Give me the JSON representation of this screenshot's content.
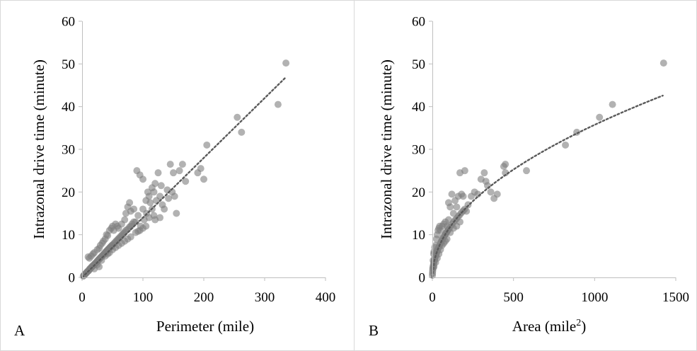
{
  "chart_data": [
    {
      "type": "scatter",
      "panel": "A",
      "xlabel": "Perimeter (mile)",
      "ylabel": "Intrazonal drive time (minute)",
      "xlim": [
        0,
        400
      ],
      "ylim": [
        0,
        60
      ],
      "xticks": [
        "0",
        "100",
        "200",
        "300",
        "400"
      ],
      "yticks": [
        "0",
        "10",
        "20",
        "30",
        "40",
        "50",
        "60"
      ],
      "trendline": {
        "style": "dotted",
        "form": "linear",
        "slope": 0.14,
        "x_start": 0,
        "x_end": 335
      },
      "points": [
        [
          2,
          0.3
        ],
        [
          3,
          0.5
        ],
        [
          4,
          0.6
        ],
        [
          5,
          0.8
        ],
        [
          6,
          0.9
        ],
        [
          7,
          1.1
        ],
        [
          8,
          1.2
        ],
        [
          9,
          1.4
        ],
        [
          10,
          1.5
        ],
        [
          11,
          1.6
        ],
        [
          12,
          1.9
        ],
        [
          13,
          2.0
        ],
        [
          14,
          2.2
        ],
        [
          15,
          2.3
        ],
        [
          16,
          2.5
        ],
        [
          17,
          2.6
        ],
        [
          18,
          2.8
        ],
        [
          19,
          2.9
        ],
        [
          20,
          3.0
        ],
        [
          21,
          3.2
        ],
        [
          22,
          3.3
        ],
        [
          23,
          3.5
        ],
        [
          24,
          3.6
        ],
        [
          25,
          3.8
        ],
        [
          26,
          4.0
        ],
        [
          27,
          4.1
        ],
        [
          28,
          4.3
        ],
        [
          29,
          4.4
        ],
        [
          30,
          4.6
        ],
        [
          31,
          4.7
        ],
        [
          32,
          4.9
        ],
        [
          33,
          5.0
        ],
        [
          34,
          5.2
        ],
        [
          35,
          5.3
        ],
        [
          36,
          5.5
        ],
        [
          37,
          5.6
        ],
        [
          38,
          5.8
        ],
        [
          39,
          6.0
        ],
        [
          40,
          6.1
        ],
        [
          41,
          6.3
        ],
        [
          42,
          6.4
        ],
        [
          43,
          6.6
        ],
        [
          44,
          6.7
        ],
        [
          45,
          6.9
        ],
        [
          46,
          7.0
        ],
        [
          47,
          7.2
        ],
        [
          48,
          7.3
        ],
        [
          49,
          7.5
        ],
        [
          50,
          7.6
        ],
        [
          52,
          7.9
        ],
        [
          54,
          8.2
        ],
        [
          56,
          8.5
        ],
        [
          58,
          8.8
        ],
        [
          60,
          9.1
        ],
        [
          62,
          9.4
        ],
        [
          64,
          9.7
        ],
        [
          66,
          10.0
        ],
        [
          68,
          10.3
        ],
        [
          70,
          10.6
        ],
        [
          72,
          11.0
        ],
        [
          75,
          11.3
        ],
        [
          78,
          11.8
        ],
        [
          80,
          12.0
        ],
        [
          82,
          12.5
        ],
        [
          85,
          13.0
        ],
        [
          10,
          4.8
        ],
        [
          12,
          4.5
        ],
        [
          15,
          5.0
        ],
        [
          18,
          5.5
        ],
        [
          20,
          5.8
        ],
        [
          25,
          6.5
        ],
        [
          28,
          6.8
        ],
        [
          30,
          7.5
        ],
        [
          33,
          8.0
        ],
        [
          35,
          8.5
        ],
        [
          38,
          9.0
        ],
        [
          40,
          10.0
        ],
        [
          42,
          9.8
        ],
        [
          45,
          11.0
        ],
        [
          48,
          11.5
        ],
        [
          50,
          12.0
        ],
        [
          52,
          11.0
        ],
        [
          55,
          12.5
        ],
        [
          58,
          12.0
        ],
        [
          60,
          11.5
        ],
        [
          65,
          12.5
        ],
        [
          70,
          13.5
        ],
        [
          72,
          15.0
        ],
        [
          75,
          16.5
        ],
        [
          78,
          17.5
        ],
        [
          80,
          15.5
        ],
        [
          85,
          16.0
        ],
        [
          20,
          2.0
        ],
        [
          25,
          3.0
        ],
        [
          28,
          2.5
        ],
        [
          32,
          4.0
        ],
        [
          38,
          5.0
        ],
        [
          42,
          5.5
        ],
        [
          45,
          5.8
        ],
        [
          50,
          6.5
        ],
        [
          55,
          7.0
        ],
        [
          60,
          7.5
        ],
        [
          65,
          8.0
        ],
        [
          70,
          8.5
        ],
        [
          75,
          9.0
        ],
        [
          80,
          9.5
        ],
        [
          88,
          10.5
        ],
        [
          92,
          10.8
        ],
        [
          95,
          11.0
        ],
        [
          100,
          11.5
        ],
        [
          105,
          12.0
        ],
        [
          90,
          25.0
        ],
        [
          95,
          24.0
        ],
        [
          100,
          23.0
        ],
        [
          105,
          18.0
        ],
        [
          108,
          20.0
        ],
        [
          110,
          19.0
        ],
        [
          112,
          17.5
        ],
        [
          115,
          21.0
        ],
        [
          118,
          20.0
        ],
        [
          120,
          22.0
        ],
        [
          122,
          18.0
        ],
        [
          125,
          24.5
        ],
        [
          128,
          19.0
        ],
        [
          128,
          14.0
        ],
        [
          130,
          21.5
        ],
        [
          132,
          17.0
        ],
        [
          135,
          16.0
        ],
        [
          140,
          20.5
        ],
        [
          142,
          18.5
        ],
        [
          145,
          26.5
        ],
        [
          148,
          20.0
        ],
        [
          150,
          24.5
        ],
        [
          152,
          19.0
        ],
        [
          155,
          15.0
        ],
        [
          160,
          25.0
        ],
        [
          165,
          26.5
        ],
        [
          170,
          22.5
        ],
        [
          190,
          24.5
        ],
        [
          195,
          25.5
        ],
        [
          200,
          23.0
        ],
        [
          205,
          31.0
        ],
        [
          255,
          37.5
        ],
        [
          262,
          34.0
        ],
        [
          322,
          40.5
        ],
        [
          335,
          50.2
        ],
        [
          88,
          13.0
        ],
        [
          92,
          14.5
        ],
        [
          96,
          12.0
        ],
        [
          100,
          16.0
        ],
        [
          102,
          13.5
        ],
        [
          106,
          15.0
        ],
        [
          110,
          14.0
        ],
        [
          115,
          16.0
        ],
        [
          118,
          14.5
        ],
        [
          120,
          13.5
        ]
      ]
    },
    {
      "type": "scatter",
      "panel": "B",
      "xlabel": "Area (mile²)",
      "ylabel": "Intrazonal drive time (minute)",
      "xlim": [
        0,
        1500
      ],
      "ylim": [
        0,
        60
      ],
      "xticks": [
        "0",
        "500",
        "1000",
        "1500"
      ],
      "yticks": [
        "0",
        "10",
        "20",
        "30",
        "40",
        "50",
        "60"
      ],
      "trendline": {
        "style": "dotted",
        "form": "power",
        "coef": 1.13,
        "exponent": 0.5,
        "x_start": 0,
        "x_end": 1420
      },
      "points": [
        [
          0.5,
          0.5
        ],
        [
          1,
          1.0
        ],
        [
          2,
          1.5
        ],
        [
          3,
          2.0
        ],
        [
          4,
          2.2
        ],
        [
          5,
          2.5
        ],
        [
          6,
          2.8
        ],
        [
          8,
          3.2
        ],
        [
          10,
          3.6
        ],
        [
          12,
          3.9
        ],
        [
          14,
          4.2
        ],
        [
          16,
          4.5
        ],
        [
          18,
          4.8
        ],
        [
          20,
          5.1
        ],
        [
          22,
          5.3
        ],
        [
          25,
          5.6
        ],
        [
          28,
          6.0
        ],
        [
          30,
          6.2
        ],
        [
          35,
          6.7
        ],
        [
          40,
          7.1
        ],
        [
          45,
          7.6
        ],
        [
          50,
          8.0
        ],
        [
          55,
          8.4
        ],
        [
          60,
          8.8
        ],
        [
          65,
          9.1
        ],
        [
          70,
          9.5
        ],
        [
          75,
          9.8
        ],
        [
          80,
          10.1
        ],
        [
          85,
          10.4
        ],
        [
          90,
          10.7
        ],
        [
          95,
          11.0
        ],
        [
          100,
          11.3
        ],
        [
          110,
          11.8
        ],
        [
          120,
          12.4
        ],
        [
          130,
          12.9
        ],
        [
          140,
          13.4
        ],
        [
          150,
          13.8
        ],
        [
          160,
          14.3
        ],
        [
          170,
          14.7
        ],
        [
          180,
          15.2
        ],
        [
          190,
          15.6
        ],
        [
          200,
          16.0
        ],
        [
          5,
          4.0
        ],
        [
          8,
          5.5
        ],
        [
          10,
          6.0
        ],
        [
          15,
          7.0
        ],
        [
          20,
          7.5
        ],
        [
          25,
          9.0
        ],
        [
          30,
          10.0
        ],
        [
          35,
          11.0
        ],
        [
          40,
          11.5
        ],
        [
          45,
          12.0
        ],
        [
          50,
          11.0
        ],
        [
          60,
          12.0
        ],
        [
          70,
          12.5
        ],
        [
          80,
          13.0
        ],
        [
          90,
          12.0
        ],
        [
          100,
          13.5
        ],
        [
          10,
          2.5
        ],
        [
          20,
          3.5
        ],
        [
          30,
          4.5
        ],
        [
          40,
          5.5
        ],
        [
          50,
          6.5
        ],
        [
          60,
          7.5
        ],
        [
          70,
          8.0
        ],
        [
          80,
          8.5
        ],
        [
          90,
          9.0
        ],
        [
          110,
          10.5
        ],
        [
          130,
          11.5
        ],
        [
          150,
          12.0
        ],
        [
          170,
          13.0
        ],
        [
          100,
          17.5
        ],
        [
          110,
          16.5
        ],
        [
          120,
          19.5
        ],
        [
          130,
          15.0
        ],
        [
          140,
          18.0
        ],
        [
          150,
          16.5
        ],
        [
          160,
          19.0
        ],
        [
          170,
          24.5
        ],
        [
          180,
          19.5
        ],
        [
          190,
          19.0
        ],
        [
          200,
          25.0
        ],
        [
          210,
          15.5
        ],
        [
          220,
          17.0
        ],
        [
          240,
          19.0
        ],
        [
          260,
          20.0
        ],
        [
          280,
          19.5
        ],
        [
          300,
          23.0
        ],
        [
          320,
          24.5
        ],
        [
          330,
          22.5
        ],
        [
          340,
          21.5
        ],
        [
          360,
          20.0
        ],
        [
          380,
          18.5
        ],
        [
          400,
          19.5
        ],
        [
          440,
          26.0
        ],
        [
          450,
          26.5
        ],
        [
          450,
          24.5
        ],
        [
          580,
          25.0
        ],
        [
          820,
          31.0
        ],
        [
          890,
          34.0
        ],
        [
          1030,
          37.5
        ],
        [
          1110,
          40.5
        ],
        [
          1425,
          50.2
        ]
      ]
    }
  ],
  "panels": {
    "a": {
      "letter": "A"
    },
    "b": {
      "letter": "B"
    }
  }
}
